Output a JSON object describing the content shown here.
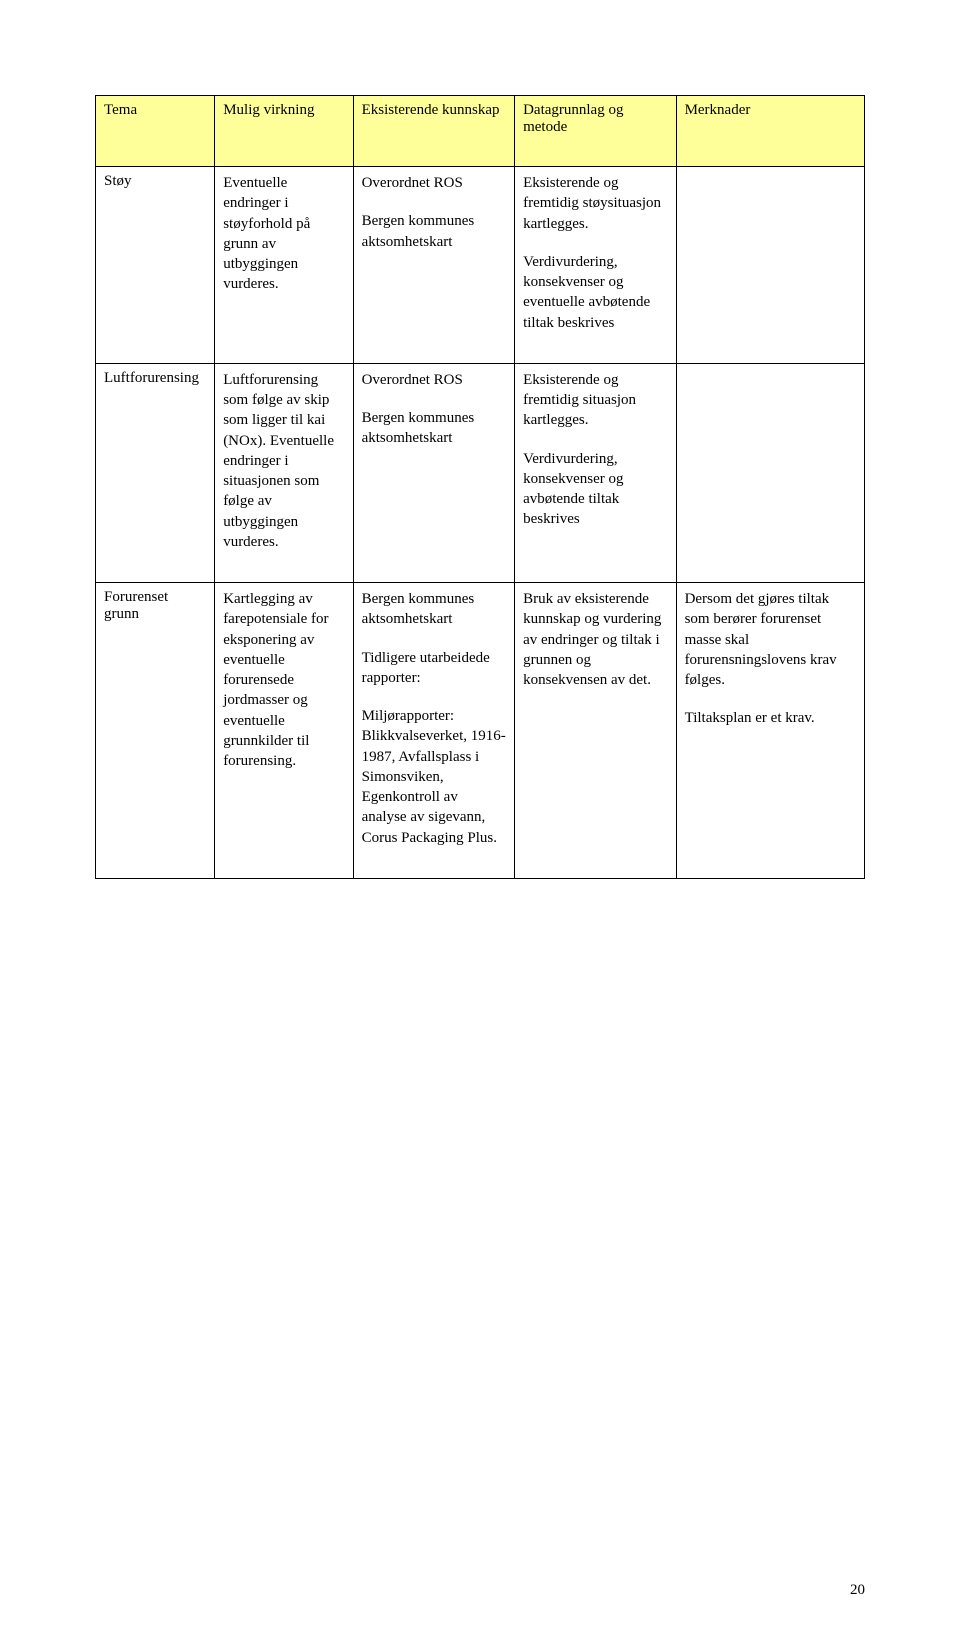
{
  "table": {
    "header_bg": "#ffff99",
    "border_color": "#000000",
    "font_family": "Times New Roman",
    "font_size_pt": 12,
    "columns": [
      {
        "label": "Tema",
        "width_pct": 15.5
      },
      {
        "label": "Mulig virkning",
        "width_pct": 18
      },
      {
        "label": "Eksisterende kunnskap",
        "width_pct": 21
      },
      {
        "label": "Datagrunnlag og metode",
        "width_pct": 21
      },
      {
        "label": "Merknader",
        "width_pct": 24.5
      }
    ],
    "rows": [
      {
        "tema": "Støy",
        "virkning_p1": "Eventuelle endringer i støyforhold på grunn av utbyggingen vurderes.",
        "kunnskap_p1": "Overordnet ROS",
        "kunnskap_p2": "Bergen kommunes aktsomhetskart",
        "data_p1": "Eksisterende og fremtidig støysituasjon kartlegges.",
        "data_p2": "Verdivurdering, konsekvenser og eventuelle avbøtende tiltak beskrives",
        "merk": ""
      },
      {
        "tema": "Luftforurensing",
        "virkning_p1": "Luftforurensing som følge av skip som ligger til kai (NOx). Eventuelle endringer i situasjonen som følge av utbyggingen vurderes.",
        "kunnskap_p1": "Overordnet ROS",
        "kunnskap_p2": "Bergen kommunes aktsomhetskart",
        "data_p1": "Eksisterende og fremtidig situasjon kartlegges.",
        "data_p2": "Verdivurdering, konsekvenser og avbøtende tiltak beskrives",
        "merk": ""
      },
      {
        "tema": "Forurenset grunn",
        "virkning_p1": "Kartlegging av farepotensiale for eksponering av eventuelle forurensede jordmasser og eventuelle grunnkilder til forurensing.",
        "kunnskap_p1": "Bergen kommunes aktsomhetskart",
        "kunnskap_p2": "Tidligere utarbeidede rapporter:",
        "kunnskap_p3": "Miljørapporter: Blikkvalseverket, 1916-1987, Avfallsplass i Simonsviken, Egenkontroll av analyse av sigevann, Corus Packaging Plus.",
        "data_p1": "Bruk av eksisterende kunnskap og vurdering av endringer og tiltak i grunnen og konsekvensen av det.",
        "merk_p1": "Dersom det gjøres tiltak som berører forurenset masse skal forurensningslovens krav følges.",
        "merk_p2": "Tiltaksplan er et krav."
      }
    ]
  },
  "page_number": "20"
}
